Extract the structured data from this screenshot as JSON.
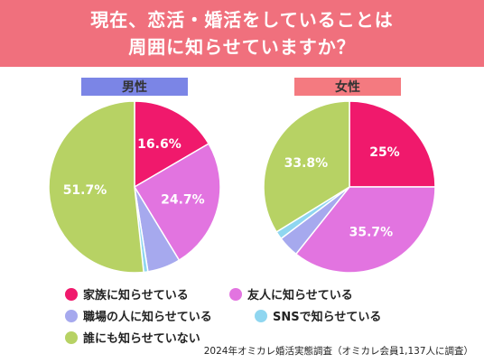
{
  "title": {
    "line1": "現在、恋活・婚活をしていることは",
    "line2": "周囲に知らせていますか？"
  },
  "source": "2024年オミカレ婚活実態調査（オミカレ会員1,137人に調査）",
  "colors": {
    "banner": "#f0707d",
    "family": "#f0196c",
    "friends": "#e274e0",
    "workplace": "#a6a9ee",
    "sns": "#8fd6f0",
    "nobody": "#b7d264"
  },
  "chart_data": [
    {
      "type": "pie",
      "title": "男性",
      "slices": [
        {
          "label": "家族に知らせている",
          "value": 16.6,
          "display": "16.6%",
          "color": "#f0196c"
        },
        {
          "label": "友人に知らせている",
          "value": 24.7,
          "display": "24.7%",
          "color": "#e274e0"
        },
        {
          "label": "職場の人に知らせている",
          "value": 6.2,
          "display": "",
          "color": "#a6a9ee"
        },
        {
          "label": "SNSで知らせている",
          "value": 0.8,
          "display": "",
          "color": "#8fd6f0"
        },
        {
          "label": "誰にも知らせていない",
          "value": 51.7,
          "display": "51.7%",
          "color": "#b7d264"
        }
      ]
    },
    {
      "type": "pie",
      "title": "女性",
      "slices": [
        {
          "label": "家族に知らせている",
          "value": 25.0,
          "display": "25%",
          "color": "#f0196c"
        },
        {
          "label": "友人に知らせている",
          "value": 35.7,
          "display": "35.7%",
          "color": "#e274e0"
        },
        {
          "label": "職場の人に知らせている",
          "value": 4.0,
          "display": "",
          "color": "#a6a9ee"
        },
        {
          "label": "SNSで知らせている",
          "value": 1.5,
          "display": "",
          "color": "#8fd6f0"
        },
        {
          "label": "誰にも知らせていない",
          "value": 33.8,
          "display": "33.8%",
          "color": "#b7d264"
        }
      ]
    }
  ],
  "legend": [
    {
      "label": "家族に知らせている",
      "color": "#f0196c"
    },
    {
      "label": "友人に知らせている",
      "color": "#e274e0"
    },
    {
      "label": "職場の人に知らせている",
      "color": "#a6a9ee"
    },
    {
      "label": "SNSで知らせている",
      "color": "#8fd6f0"
    },
    {
      "label": "誰にも知らせていない",
      "color": "#b7d264"
    }
  ]
}
